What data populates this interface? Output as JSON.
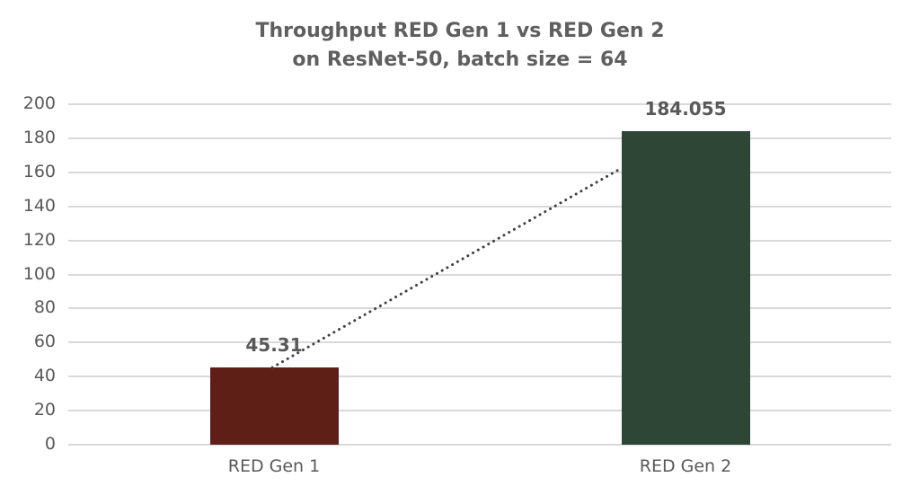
{
  "chart_data": {
    "type": "bar",
    "title": "Throughput RED Gen 1 vs RED Gen 2 on ResNet-50, batch size = 64",
    "title_lines": [
      "Throughput RED Gen 1 vs RED Gen 2",
      "on ResNet-50, batch size = 64"
    ],
    "categories": [
      "RED Gen 1",
      "RED Gen 2"
    ],
    "values": [
      45.31,
      184.055
    ],
    "data_labels": [
      "45.31",
      "184.055"
    ],
    "bar_colors": [
      "#5e1f17",
      "#2e4636"
    ],
    "xlabel": "",
    "ylabel": "",
    "ylim": [
      0,
      200
    ],
    "yticks": [
      "0",
      "20",
      "40",
      "60",
      "80",
      "100",
      "120",
      "140",
      "160",
      "180",
      "200"
    ],
    "grid": true,
    "legend": null,
    "trendline": {
      "type": "linear",
      "style": "dotted",
      "color": "#404040"
    }
  }
}
